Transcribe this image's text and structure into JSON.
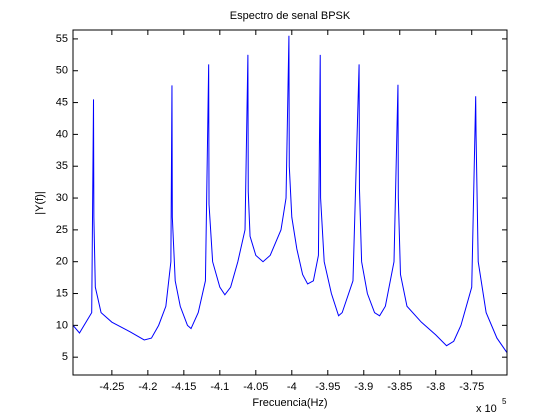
{
  "chart_data": {
    "type": "line",
    "title": "Espectro de senal BPSK",
    "xlabel": "Frecuencia(Hz)",
    "ylabel": "|Y(f)|",
    "x_multiplier": "x 10",
    "x_multiplier_exponent": "5",
    "xlim": [
      -4.304,
      -3.701
    ],
    "ylim": [
      2.2,
      56.4
    ],
    "xticks": [
      -4.25,
      -4.2,
      -4.15,
      -4.1,
      -4.05,
      -4,
      -3.95,
      -3.9,
      -3.85,
      -3.8,
      -3.75
    ],
    "yticks": [
      5,
      10,
      15,
      20,
      25,
      30,
      35,
      40,
      45,
      50,
      55
    ],
    "x": [
      -4.304,
      -4.295,
      -4.278,
      -4.2755,
      -4.275,
      -4.273,
      -4.265,
      -4.25,
      -4.225,
      -4.205,
      -4.195,
      -4.185,
      -4.175,
      -4.168,
      -4.1665,
      -4.166,
      -4.162,
      -4.155,
      -4.145,
      -4.14,
      -4.13,
      -4.12,
      -4.1155,
      -4.115,
      -4.11,
      -4.1,
      -4.093,
      -4.085,
      -4.075,
      -4.065,
      -4.061,
      -4.0605,
      -4.058,
      -4.05,
      -4.04,
      -4.03,
      -4.015,
      -4.008,
      -4.004,
      -4.0035,
      -4.0,
      -3.993,
      -3.985,
      -3.978,
      -3.97,
      -3.963,
      -3.9605,
      -3.96,
      -3.955,
      -3.945,
      -3.935,
      -3.93,
      -3.915,
      -3.9065,
      -3.906,
      -3.903,
      -3.895,
      -3.885,
      -3.878,
      -3.87,
      -3.858,
      -3.8525,
      -3.852,
      -3.849,
      -3.84,
      -3.82,
      -3.8,
      -3.785,
      -3.775,
      -3.765,
      -3.75,
      -3.7445,
      -3.744,
      -3.741,
      -3.73,
      -3.715,
      -3.701
    ],
    "series": [
      {
        "name": "|Y(f)|",
        "color": "#0000ff",
        "values": [
          10,
          8.8,
          12,
          45.5,
          27,
          16,
          12,
          10.5,
          9,
          7.7,
          8,
          10,
          13,
          20,
          47.7,
          27,
          17,
          13,
          10,
          9.5,
          12,
          17,
          51,
          29,
          20,
          16,
          14.8,
          16,
          20,
          25,
          52.5,
          31,
          24,
          21,
          20,
          21,
          25,
          30,
          55.5,
          35,
          27,
          22,
          18,
          16.5,
          17,
          21,
          52.5,
          30,
          20,
          15,
          11.5,
          12,
          17,
          51,
          31.5,
          20,
          15,
          12,
          11.5,
          13,
          20,
          47.8,
          30,
          18,
          13,
          10.5,
          8.5,
          6.8,
          7.5,
          10,
          16,
          46,
          40,
          20,
          12,
          8,
          5.7
        ]
      }
    ]
  }
}
